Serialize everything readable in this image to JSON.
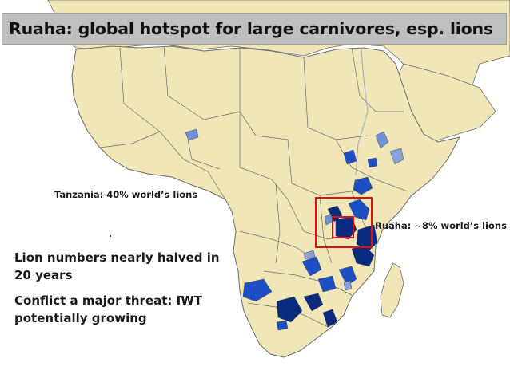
{
  "title": "Ruaha: global hotspot for large carnivores, esp. lions",
  "labels": {
    "tanzania": "Tanzania: 40% world’s lions",
    "ruaha": "Ruaha: ~8% world’s lions"
  },
  "notes": {
    "line1": "Lion numbers nearly halved in 20 years",
    "line2": "Conflict a major threat: IWT potentially growing"
  },
  "colors": {
    "land": "#f0e6b8",
    "sea": "#ffffff",
    "border": "#6b6b6b",
    "lion_range_dark": "#0a2a80",
    "lion_range_mid": "#1e4fc4",
    "lion_range_light": "#6f8fd8",
    "highlight_box": "#e01010",
    "title_background": "#bfbfbf"
  }
}
